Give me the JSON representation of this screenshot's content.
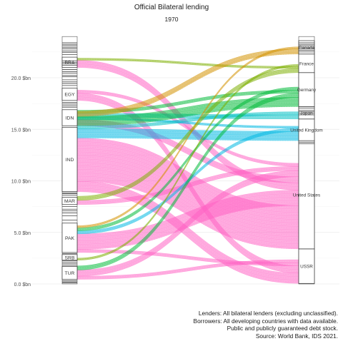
{
  "chart_data": {
    "type": "alluvial",
    "title": "Official Bilateral lending",
    "subtitle": "1970",
    "y_unit_suffix": "$bn",
    "ylim": [
      0,
      24
    ],
    "y_ticks": [
      0,
      5,
      10,
      15,
      20
    ],
    "y_tick_labels": [
      "0.0 $bn",
      "5.0 $bn",
      "10.0 $bn",
      "15.0 $bn",
      "20.0 $bn"
    ],
    "grid": true,
    "borrower_axis": {
      "labeled_strata": [
        {
          "label": "TUR",
          "from": 0.45,
          "to": 1.7
        },
        {
          "label": "SRB",
          "from": 2.3,
          "to": 2.85
        },
        {
          "label": "PAK",
          "from": 3.05,
          "to": 5.9
        },
        {
          "label": "MAR",
          "from": 7.7,
          "to": 8.4
        },
        {
          "label": "IND",
          "from": 8.95,
          "to": 15.2
        },
        {
          "label": "IDN",
          "from": 15.35,
          "to": 16.9
        },
        {
          "label": "EGY",
          "from": 17.8,
          "to": 19.0
        },
        {
          "label": "BRA",
          "from": 21.0,
          "to": 22.0
        }
      ],
      "unlabeled_segment_boundaries": [
        0.1,
        0.2,
        0.3,
        1.8,
        1.95,
        2.1,
        2.25,
        2.95,
        6.2,
        6.6,
        6.9,
        7.1,
        7.25,
        7.5,
        8.6,
        8.75,
        8.85,
        17.15,
        17.3,
        17.45,
        17.6,
        19.25,
        19.45,
        19.6,
        19.8,
        20.1,
        20.25,
        20.45,
        20.6,
        20.8,
        21.2,
        21.35,
        21.5,
        21.65,
        22.25,
        22.45,
        22.6,
        22.8,
        22.95,
        23.1,
        23.25,
        23.4
      ]
    },
    "lender_axis": {
      "labeled_strata": [
        {
          "label": "USSR",
          "from": 0.05,
          "to": 3.4,
          "color": "#FF61C3"
        },
        {
          "label": "United States",
          "from": 3.4,
          "to": 13.9,
          "color": "#FF61C3"
        },
        {
          "label": "United Kingdom",
          "from": 13.9,
          "to": 16.0,
          "color": "#00B9E3"
        },
        {
          "label": "Japan",
          "from": 16.0,
          "to": 17.2,
          "color": "#00BFC4"
        },
        {
          "label": "Germany",
          "from": 17.2,
          "to": 20.5,
          "color": "#00BA38"
        },
        {
          "label": "France",
          "from": 20.5,
          "to": 22.3,
          "color": "#7CAE00"
        },
        {
          "label": "Canada",
          "from": 22.3,
          "to": 23.6,
          "color": "#D39200"
        }
      ],
      "unlabeled_segment_boundaries": [
        13.6,
        13.75,
        16.4,
        16.55,
        16.7,
        16.85,
        17.05,
        22.5,
        22.65,
        22.8,
        22.95,
        23.1,
        23.25,
        23.4
      ]
    },
    "flows": [
      {
        "lender": "United States",
        "borrower": "IND",
        "value": 4.2,
        "color": "#FF61C3"
      },
      {
        "lender": "United States",
        "borrower": "PAK",
        "value": 1.5,
        "color": "#FF61C3"
      },
      {
        "lender": "United States",
        "borrower": "BRA",
        "value": 0.7,
        "color": "#FF61C3"
      },
      {
        "lender": "United States",
        "borrower": "IDN",
        "value": 0.6,
        "color": "#FF61C3"
      },
      {
        "lender": "United States",
        "borrower": "TUR",
        "value": 0.6,
        "color": "#FF61C3"
      },
      {
        "lender": "United States",
        "borrower": "MAR",
        "value": 0.4,
        "color": "#FF61C3"
      },
      {
        "lender": "United States",
        "borrower": "EGY",
        "value": 0.3,
        "color": "#FF61C3"
      },
      {
        "lender": "USSR",
        "borrower": "IND",
        "value": 1.0,
        "color": "#FF61C3"
      },
      {
        "lender": "USSR",
        "borrower": "EGY",
        "value": 0.7,
        "color": "#FF61C3"
      },
      {
        "lender": "USSR",
        "borrower": "PAK",
        "value": 0.3,
        "color": "#FF61C3"
      },
      {
        "lender": "USSR",
        "borrower": "TUR",
        "value": 0.3,
        "color": "#FF61C3"
      },
      {
        "lender": "United Kingdom",
        "borrower": "IND",
        "value": 0.9,
        "color": "#00B9E3"
      },
      {
        "lender": "United Kingdom",
        "borrower": "PAK",
        "value": 0.3,
        "color": "#00B9E3"
      },
      {
        "lender": "United Kingdom",
        "borrower": "IDN",
        "value": 0.2,
        "color": "#00B9E3"
      },
      {
        "lender": "Japan",
        "borrower": "IDN",
        "value": 0.4,
        "color": "#00BFC4"
      },
      {
        "lender": "Japan",
        "borrower": "IND",
        "value": 0.3,
        "color": "#00BFC4"
      },
      {
        "lender": "Germany",
        "borrower": "IND",
        "value": 0.9,
        "color": "#00BA38"
      },
      {
        "lender": "Germany",
        "borrower": "TUR",
        "value": 0.4,
        "color": "#00BA38"
      },
      {
        "lender": "Germany",
        "borrower": "IDN",
        "value": 0.3,
        "color": "#00BA38"
      },
      {
        "lender": "Germany",
        "borrower": "PAK",
        "value": 0.3,
        "color": "#00BA38"
      },
      {
        "lender": "France",
        "borrower": "MAR",
        "value": 0.4,
        "color": "#7CAE00"
      },
      {
        "lender": "France",
        "borrower": "BRA",
        "value": 0.2,
        "color": "#7CAE00"
      },
      {
        "lender": "France",
        "borrower": "SRB",
        "value": 0.2,
        "color": "#7CAE00"
      },
      {
        "lender": "Canada",
        "borrower": "IND",
        "value": 0.5,
        "color": "#D39200"
      },
      {
        "lender": "Canada",
        "borrower": "PAK",
        "value": 0.2,
        "color": "#D39200"
      }
    ],
    "caption": [
      "Lenders: All bilateral lenders (excluding unclassified).",
      "Borrowers: All developing countries with data available.",
      "Public and publicly guaranteed debt stock.",
      "Source: World Bank, IDS 2021."
    ]
  }
}
